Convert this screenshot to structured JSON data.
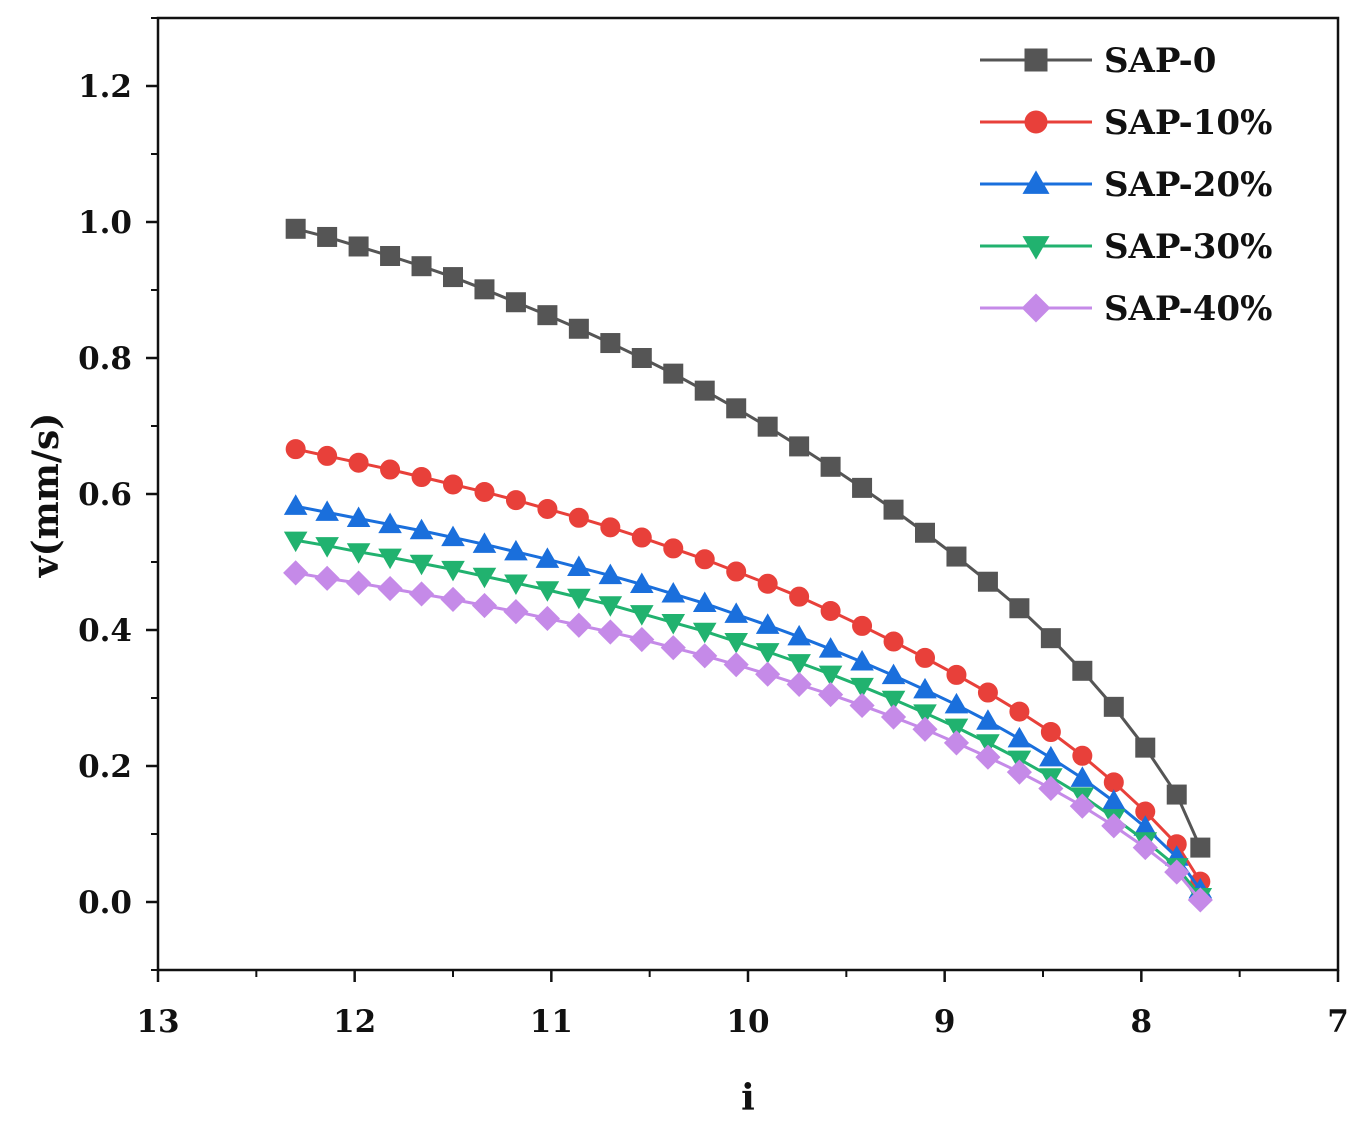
{
  "chart_data": {
    "type": "line",
    "title": "",
    "xlabel": "i",
    "ylabel": "v(mm/s)",
    "xlim": [
      13,
      7
    ],
    "ylim": [
      -0.1,
      1.3
    ],
    "x_reversed": true,
    "xticks": [
      {
        "value": 13,
        "label": "13"
      },
      {
        "value": 12,
        "label": "12"
      },
      {
        "value": 11,
        "label": "11"
      },
      {
        "value": 10,
        "label": "10"
      },
      {
        "value": 9,
        "label": "9"
      },
      {
        "value": 8,
        "label": "8"
      },
      {
        "value": 7,
        "label": "7"
      }
    ],
    "yticks": [
      {
        "value": 0.0,
        "label": "0.0"
      },
      {
        "value": 0.2,
        "label": "0.2"
      },
      {
        "value": 0.4,
        "label": "0.4"
      },
      {
        "value": 0.6,
        "label": "0.6"
      },
      {
        "value": 0.8,
        "label": "0.8"
      },
      {
        "value": 1.0,
        "label": "1.0"
      },
      {
        "value": 1.2,
        "label": "1.2"
      }
    ],
    "legend_position": "top-right",
    "grid": false,
    "x": [
      12.3,
      12.14,
      11.98,
      11.82,
      11.66,
      11.5,
      11.34,
      11.18,
      11.02,
      10.86,
      10.7,
      10.54,
      10.38,
      10.22,
      10.06,
      9.9,
      9.74,
      9.58,
      9.42,
      9.26,
      9.1,
      8.94,
      8.78,
      8.62,
      8.46,
      8.3,
      8.14,
      7.98,
      7.82,
      7.7
    ],
    "series": [
      {
        "name": "SAP-0",
        "color": "#555555",
        "marker": "square",
        "values": [
          0.99,
          0.978,
          0.964,
          0.95,
          0.935,
          0.919,
          0.901,
          0.882,
          0.863,
          0.843,
          0.822,
          0.8,
          0.777,
          0.752,
          0.726,
          0.699,
          0.67,
          0.64,
          0.609,
          0.577,
          0.543,
          0.508,
          0.471,
          0.432,
          0.388,
          0.34,
          0.287,
          0.227,
          0.158,
          0.08
        ]
      },
      {
        "name": "SAP-10%",
        "color": "#e8403a",
        "marker": "circle",
        "values": [
          0.666,
          0.656,
          0.646,
          0.636,
          0.625,
          0.614,
          0.603,
          0.591,
          0.578,
          0.565,
          0.551,
          0.536,
          0.52,
          0.504,
          0.486,
          0.468,
          0.449,
          0.428,
          0.406,
          0.383,
          0.359,
          0.334,
          0.308,
          0.28,
          0.25,
          0.215,
          0.176,
          0.133,
          0.085,
          0.03
        ]
      },
      {
        "name": "SAP-20%",
        "color": "#1a6fdc",
        "marker": "triangle-up",
        "values": [
          0.582,
          0.573,
          0.564,
          0.555,
          0.546,
          0.536,
          0.526,
          0.515,
          0.504,
          0.492,
          0.48,
          0.467,
          0.453,
          0.439,
          0.423,
          0.407,
          0.39,
          0.372,
          0.353,
          0.333,
          0.312,
          0.29,
          0.266,
          0.24,
          0.212,
          0.182,
          0.148,
          0.11,
          0.066,
          0.018
        ]
      },
      {
        "name": "SAP-30%",
        "color": "#21b26f",
        "marker": "triangle-down",
        "values": [
          0.532,
          0.524,
          0.515,
          0.507,
          0.498,
          0.489,
          0.479,
          0.469,
          0.459,
          0.448,
          0.437,
          0.424,
          0.411,
          0.398,
          0.383,
          0.368,
          0.352,
          0.335,
          0.317,
          0.298,
          0.278,
          0.257,
          0.234,
          0.21,
          0.184,
          0.156,
          0.124,
          0.09,
          0.052,
          0.008
        ]
      },
      {
        "name": "SAP-40%",
        "color": "#c58ae8",
        "marker": "diamond",
        "values": [
          0.484,
          0.476,
          0.469,
          0.461,
          0.453,
          0.445,
          0.436,
          0.427,
          0.417,
          0.407,
          0.397,
          0.386,
          0.374,
          0.362,
          0.349,
          0.335,
          0.32,
          0.305,
          0.289,
          0.272,
          0.254,
          0.234,
          0.213,
          0.191,
          0.167,
          0.141,
          0.112,
          0.08,
          0.044,
          0.003
        ]
      }
    ]
  }
}
